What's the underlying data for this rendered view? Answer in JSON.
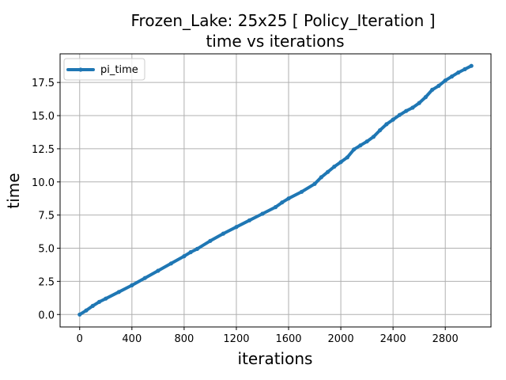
{
  "chart_data": {
    "type": "line",
    "title": "Frozen_Lake: 25x25 [ Policy_Iteration ]",
    "subtitle": "time vs iterations",
    "xlabel": "iterations",
    "ylabel": "time",
    "xlim": [
      -150,
      3150
    ],
    "ylim": [
      -0.94,
      19.66
    ],
    "xticks": [
      0,
      400,
      800,
      1200,
      1600,
      2000,
      2400,
      2800
    ],
    "yticks": [
      0.0,
      2.5,
      5.0,
      7.5,
      10.0,
      12.5,
      15.0,
      17.5
    ],
    "ytick_labels": [
      "0.0",
      "2.5",
      "5.0",
      "7.5",
      "10.0",
      "12.5",
      "15.0",
      "17.5"
    ],
    "grid": true,
    "legend": "top-left",
    "series": [
      {
        "name": "pi_time",
        "color": "#1f77b4",
        "x": [
          0,
          50,
          100,
          150,
          200,
          300,
          400,
          500,
          600,
          700,
          800,
          850,
          900,
          1000,
          1100,
          1200,
          1300,
          1400,
          1500,
          1550,
          1600,
          1700,
          1800,
          1850,
          1900,
          1950,
          2000,
          2050,
          2100,
          2150,
          2200,
          2250,
          2300,
          2350,
          2400,
          2450,
          2500,
          2550,
          2600,
          2650,
          2700,
          2750,
          2800,
          2850,
          2900,
          2950,
          3000
        ],
        "y": [
          0.0,
          0.3,
          0.65,
          0.95,
          1.2,
          1.7,
          2.2,
          2.75,
          3.3,
          3.85,
          4.4,
          4.7,
          4.95,
          5.55,
          6.1,
          6.6,
          7.1,
          7.6,
          8.1,
          8.45,
          8.75,
          9.25,
          9.85,
          10.35,
          10.75,
          11.15,
          11.5,
          11.85,
          12.45,
          12.75,
          13.05,
          13.4,
          13.9,
          14.35,
          14.7,
          15.05,
          15.35,
          15.6,
          15.95,
          16.4,
          16.95,
          17.25,
          17.65,
          17.95,
          18.25,
          18.5,
          18.75
        ]
      }
    ]
  }
}
